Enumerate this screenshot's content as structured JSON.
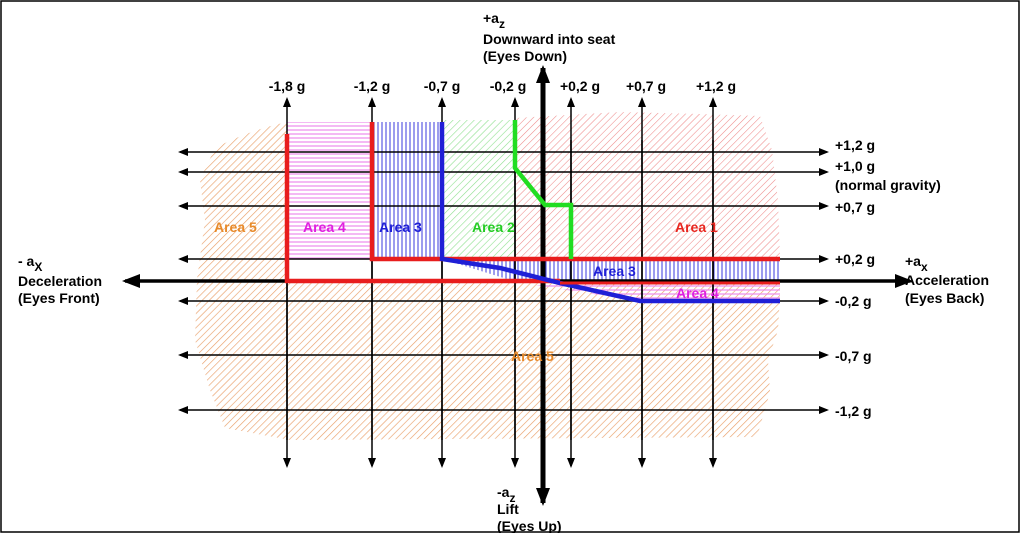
{
  "top_axis": {
    "sign": "+a",
    "sub": "z",
    "line1": "Downward into seat",
    "line2": "(Eyes Down)"
  },
  "bottom_axis": {
    "sign": "-a",
    "sub": "z",
    "line1": "Lift",
    "line2": "(Eyes Up)"
  },
  "left_axis": {
    "sign": "- a",
    "sub": "X",
    "line1": "Deceleration",
    "line2": "(Eyes Front)"
  },
  "right_axis": {
    "sign": "+a",
    "sub": "x",
    "line1": "Acceleration",
    "line2": "(Eyes Back)"
  },
  "column_labels": [
    "-1,8 g",
    "-1,2 g",
    "-0,7 g",
    "-0,2 g",
    "+0,2 g",
    "+0,7 g",
    "+1,2 g"
  ],
  "row_labels": {
    "r1": "+1,2 g",
    "r2": "+1,0 g",
    "r2_note": "(normal gravity)",
    "r3": "+0,7 g",
    "r4": "+0,2 g",
    "r5": "-0,2 g",
    "r6": "-0,7 g",
    "r7": "-1,2 g"
  },
  "areas": {
    "area5_left": "Area 5",
    "area4_top": "Area 4",
    "area3_top": "Area 3",
    "area2": "Area 2",
    "area1": "Area 1",
    "area3_low": "Area 3",
    "area4_low": "Area 4",
    "area5_bottom": "Area 5"
  },
  "colors": {
    "area1": "#e8261f",
    "area2": "#22cc22",
    "area3": "#1f1fd6",
    "area4": "#e020e0",
    "area5": "#e88a2a"
  }
}
